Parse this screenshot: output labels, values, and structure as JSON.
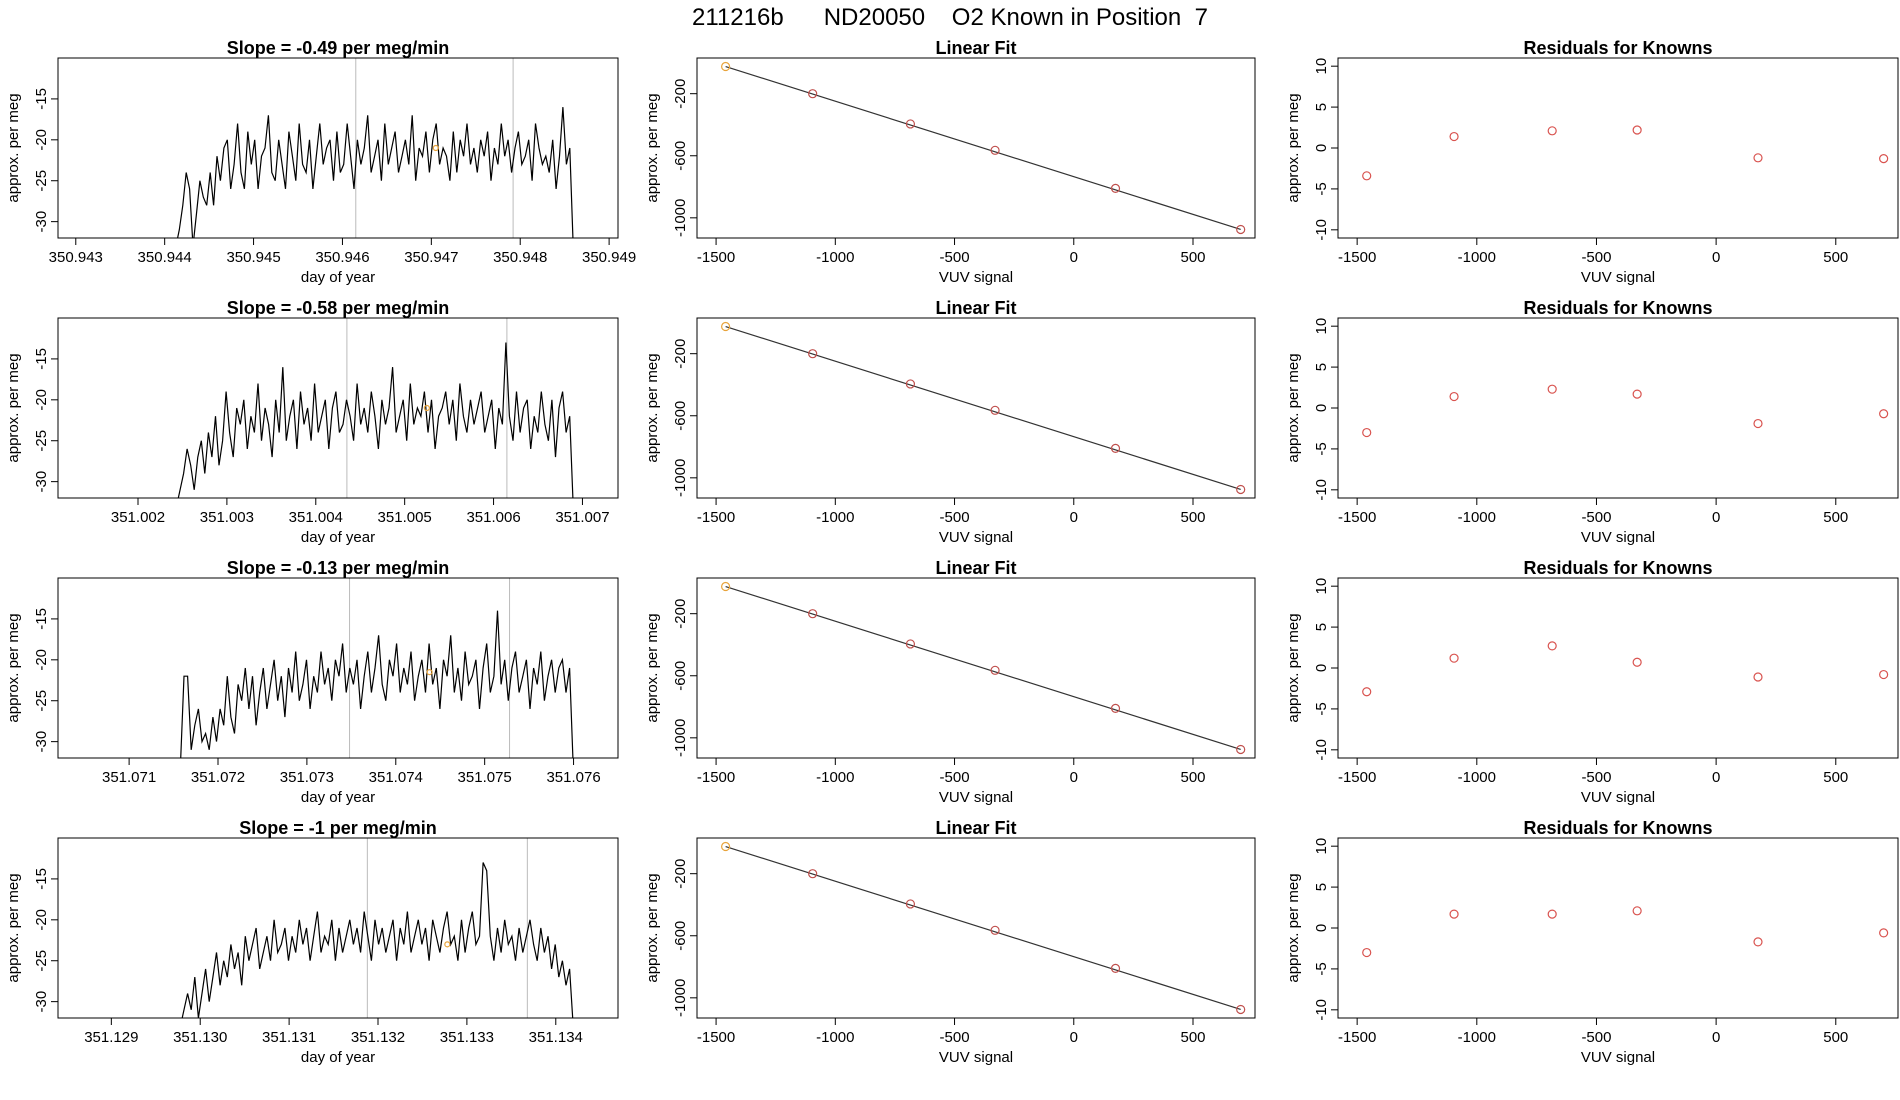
{
  "page_title": "211216b      ND20050    O2 Known in Position  7",
  "colors": {
    "trace": "#000000",
    "known_marker": "#e8a33a",
    "residual_marker": "#d9534f",
    "fit_point": "#c0504d",
    "vline": "#bbbbbb",
    "axis": "#000000"
  },
  "rows": [
    {
      "time_series": {
        "title": "Slope =  -0.49  per meg/min",
        "xlabel": "day of year",
        "ylabel": "approx. per meg",
        "xticks": [
          "350.943",
          "350.944",
          "350.945",
          "350.946",
          "350.947",
          "350.948",
          "350.949"
        ],
        "yticks": [
          "-15",
          "-20",
          "-25",
          "-30"
        ]
      },
      "fit": {
        "title": "Linear Fit",
        "xlabel": "VUV signal",
        "ylabel": "approx. per meg",
        "xticks": [
          "-1500",
          "-1000",
          "-500",
          "0",
          "500"
        ],
        "yticks": [
          "-200",
          "-600",
          "-1000"
        ]
      },
      "residuals": {
        "title": "Residuals for Knowns",
        "xlabel": "VUV signal",
        "ylabel": "approx. per meg",
        "xticks": [
          "-1500",
          "-1000",
          "-500",
          "0",
          "500"
        ],
        "yticks": [
          "10",
          "5",
          "0",
          "-5",
          "-10"
        ]
      }
    },
    {
      "time_series": {
        "title": "Slope =  -0.58  per meg/min",
        "xlabel": "day of year",
        "ylabel": "approx. per meg",
        "xticks": [
          "351.002",
          "351.003",
          "351.004",
          "351.005",
          "351.006",
          "351.007"
        ],
        "yticks": [
          "-15",
          "-20",
          "-25",
          "-30"
        ]
      },
      "fit": {
        "title": "Linear Fit",
        "xlabel": "VUV signal",
        "ylabel": "approx. per meg",
        "xticks": [
          "-1500",
          "-1000",
          "-500",
          "0",
          "500"
        ],
        "yticks": [
          "-200",
          "-600",
          "-1000"
        ]
      },
      "residuals": {
        "title": "Residuals for Knowns",
        "xlabel": "VUV signal",
        "ylabel": "approx. per meg",
        "xticks": [
          "-1500",
          "-1000",
          "-500",
          "0",
          "500"
        ],
        "yticks": [
          "10",
          "5",
          "0",
          "-5",
          "-10"
        ]
      }
    },
    {
      "time_series": {
        "title": "Slope =  -0.13  per meg/min",
        "xlabel": "day of year",
        "ylabel": "approx. per meg",
        "xticks": [
          "351.071",
          "351.072",
          "351.073",
          "351.074",
          "351.075",
          "351.076"
        ],
        "yticks": [
          "-15",
          "-20",
          "-25",
          "-30"
        ]
      },
      "fit": {
        "title": "Linear Fit",
        "xlabel": "VUV signal",
        "ylabel": "approx. per meg",
        "xticks": [
          "-1500",
          "-1000",
          "-500",
          "0",
          "500"
        ],
        "yticks": [
          "-200",
          "-600",
          "-1000"
        ]
      },
      "residuals": {
        "title": "Residuals for Knowns",
        "xlabel": "VUV signal",
        "ylabel": "approx. per meg",
        "xticks": [
          "-1500",
          "-1000",
          "-500",
          "0",
          "500"
        ],
        "yticks": [
          "10",
          "5",
          "0",
          "-5",
          "-10"
        ]
      }
    },
    {
      "time_series": {
        "title": "Slope =  -1  per meg/min",
        "xlabel": "day of year",
        "ylabel": "approx. per meg",
        "xticks": [
          "351.129",
          "351.130",
          "351.131",
          "351.132",
          "351.133",
          "351.134"
        ],
        "yticks": [
          "-15",
          "-20",
          "-25",
          "-30"
        ]
      },
      "fit": {
        "title": "Linear Fit",
        "xlabel": "VUV signal",
        "ylabel": "approx. per meg",
        "xticks": [
          "-1500",
          "-1000",
          "-500",
          "0",
          "500"
        ],
        "yticks": [
          "-200",
          "-600",
          "-1000"
        ]
      },
      "residuals": {
        "title": "Residuals for Knowns",
        "xlabel": "VUV signal",
        "ylabel": "approx. per meg",
        "xticks": [
          "-1500",
          "-1000",
          "-500",
          "0",
          "500"
        ],
        "yticks": [
          "10",
          "5",
          "0",
          "-5",
          "-10"
        ]
      }
    }
  ],
  "chart_data": [
    {
      "type": "line",
      "title": "Slope =  -0.49  per meg/min",
      "xlabel": "day of year",
      "ylabel": "approx. per meg",
      "xlim": [
        350.9428,
        350.9491
      ],
      "ylim": [
        -32,
        -10
      ],
      "vlines": [
        350.94615,
        350.94792
      ],
      "known_point": {
        "x": 350.94705,
        "y": -21
      },
      "series": [
        {
          "values": [
            -33,
            -33,
            -33,
            -33,
            -33,
            -33,
            -31,
            -28,
            -24,
            -26,
            -33,
            -29,
            -25,
            -27,
            -28,
            -24,
            -28,
            -22,
            -25,
            -21,
            -20,
            -26,
            -23,
            -18,
            -24,
            -26,
            -19,
            -23,
            -20,
            -26,
            -22,
            -21,
            -17,
            -24,
            -25,
            -20,
            -23,
            -26,
            -19,
            -22,
            -25,
            -18,
            -23,
            -24,
            -20,
            -26,
            -22,
            -18,
            -23,
            -21,
            -20,
            -25,
            -19,
            -24,
            -23,
            -18,
            -22,
            -26,
            -20,
            -23,
            -21,
            -17,
            -24,
            -22,
            -20,
            -25,
            -18,
            -23,
            -21,
            -19,
            -24,
            -22,
            -20,
            -23,
            -17,
            -25,
            -21,
            -22,
            -19,
            -24,
            -20,
            -18,
            -23,
            -21,
            -22,
            -25,
            -19,
            -24,
            -20,
            -22,
            -18,
            -23,
            -21,
            -24,
            -20,
            -22,
            -19,
            -25,
            -21,
            -23,
            -18,
            -22,
            -20,
            -24,
            -21,
            -19,
            -23,
            -22,
            -20,
            -25,
            -18,
            -21,
            -23,
            -22,
            -24,
            -20,
            -26,
            -22,
            -16,
            -23,
            -21,
            -33
          ]
        }
      ]
    },
    {
      "type": "line",
      "title": "Slope =  -0.58  per meg/min",
      "xlabel": "day of year",
      "ylabel": "approx. per meg",
      "xlim": [
        351.0011,
        351.0074
      ],
      "ylim": [
        -32,
        -10
      ],
      "vlines": [
        351.00435,
        351.00615
      ],
      "known_point": {
        "x": 351.00525,
        "y": -21
      },
      "series": [
        {
          "values": [
            -33,
            -33,
            -33,
            -33,
            -33,
            -33,
            -31,
            -29,
            -26,
            -28,
            -31,
            -27,
            -25,
            -29,
            -24,
            -27,
            -22,
            -28,
            -25,
            -19,
            -24,
            -27,
            -21,
            -23,
            -20,
            -26,
            -22,
            -24,
            -18,
            -25,
            -21,
            -23,
            -27,
            -20,
            -24,
            -16,
            -25,
            -22,
            -20,
            -26,
            -19,
            -23,
            -21,
            -25,
            -18,
            -24,
            -22,
            -20,
            -26,
            -21,
            -19,
            -24,
            -23,
            -20,
            -22,
            -25,
            -18,
            -23,
            -21,
            -24,
            -19,
            -22,
            -26,
            -20,
            -23,
            -21,
            -16,
            -24,
            -22,
            -20,
            -25,
            -18,
            -23,
            -21,
            -22,
            -19,
            -24,
            -20,
            -26,
            -22,
            -21,
            -19,
            -23,
            -20,
            -25,
            -18,
            -22,
            -24,
            -20,
            -23,
            -21,
            -19,
            -24,
            -22,
            -20,
            -26,
            -21,
            -23,
            -13,
            -22,
            -25,
            -19,
            -24,
            -21,
            -20,
            -26,
            -22,
            -24,
            -19,
            -23,
            -25,
            -20,
            -27,
            -21,
            -19,
            -24,
            -22,
            -33
          ]
        }
      ]
    },
    {
      "type": "line",
      "title": "Slope =  -0.13  per meg/min",
      "xlabel": "day of year",
      "ylabel": "approx. per meg",
      "xlim": [
        351.0702,
        351.0765
      ],
      "ylim": [
        -32,
        -10
      ],
      "vlines": [
        351.07348,
        351.07528
      ],
      "known_point": {
        "x": 351.07438,
        "y": -21.5
      },
      "series": [
        {
          "values": [
            -33,
            -33,
            -33,
            -33,
            -33,
            -33,
            -33,
            -22,
            -22,
            -31,
            -28,
            -26,
            -30,
            -29,
            -31,
            -27,
            -30,
            -26,
            -28,
            -22,
            -27,
            -29,
            -23,
            -25,
            -21,
            -26,
            -22,
            -28,
            -24,
            -21,
            -26,
            -23,
            -20,
            -25,
            -22,
            -27,
            -21,
            -24,
            -19,
            -25,
            -23,
            -20,
            -26,
            -22,
            -24,
            -19,
            -23,
            -21,
            -25,
            -20,
            -22,
            -18,
            -24,
            -21,
            -23,
            -20,
            -26,
            -22,
            -19,
            -24,
            -21,
            -17,
            -23,
            -25,
            -20,
            -22,
            -18,
            -24,
            -21,
            -23,
            -19,
            -25,
            -22,
            -20,
            -24,
            -18,
            -23,
            -21,
            -26,
            -20,
            -22,
            -17,
            -24,
            -21,
            -25,
            -19,
            -23,
            -22,
            -20,
            -26,
            -21,
            -18,
            -24,
            -22,
            -14,
            -23,
            -20,
            -25,
            -21,
            -19,
            -24,
            -22,
            -20,
            -26,
            -21,
            -23,
            -19,
            -25,
            -22,
            -20,
            -24,
            -21,
            -20,
            -24,
            -21,
            -33
          ]
        }
      ]
    },
    {
      "type": "line",
      "title": "Slope =  -1  per meg/min",
      "xlabel": "day of year",
      "ylabel": "approx. per meg",
      "xlim": [
        351.1284,
        351.1347
      ],
      "ylim": [
        -32,
        -10
      ],
      "vlines": [
        351.13188,
        351.13368
      ],
      "known_point": {
        "x": 351.13278,
        "y": -23
      },
      "series": [
        {
          "values": [
            -33,
            -33,
            -33,
            -33,
            -33,
            -33,
            -33,
            -31,
            -29,
            -31,
            -27,
            -32,
            -29,
            -26,
            -30,
            -27,
            -24,
            -28,
            -25,
            -27,
            -23,
            -26,
            -24,
            -28,
            -22,
            -25,
            -23,
            -21,
            -26,
            -24,
            -22,
            -25,
            -20,
            -24,
            -23,
            -21,
            -25,
            -22,
            -24,
            -20,
            -23,
            -21,
            -25,
            -22,
            -19,
            -24,
            -22,
            -23,
            -20,
            -25,
            -21,
            -24,
            -22,
            -20,
            -23,
            -21,
            -24,
            -19,
            -22,
            -25,
            -20,
            -23,
            -21,
            -24,
            -22,
            -20,
            -25,
            -21,
            -23,
            -19,
            -24,
            -22,
            -20,
            -23,
            -21,
            -25,
            -20,
            -22,
            -24,
            -21,
            -19,
            -23,
            -22,
            -25,
            -20,
            -24,
            -21,
            -19,
            -23,
            -22,
            -13,
            -14,
            -22,
            -25,
            -21,
            -24,
            -20,
            -23,
            -22,
            -25,
            -21,
            -24,
            -22,
            -20,
            -23,
            -25,
            -21,
            -24,
            -22,
            -26,
            -23,
            -27,
            -25,
            -28,
            -26,
            -33
          ]
        }
      ]
    },
    {
      "type": "scatter",
      "title": "Linear Fit",
      "xlabel": "VUV signal",
      "ylabel": "approx. per meg",
      "xlim": [
        -1580,
        760
      ],
      "ylim": [
        -1130,
        30
      ],
      "x": [
        -1460,
        -1095,
        -685,
        -330,
        175,
        700
      ],
      "y": [
        -25,
        -200,
        -395,
        -565,
        -810,
        -1075
      ],
      "fit_line": {
        "x": [
          -1460,
          700
        ],
        "y": [
          -25,
          -1075
        ]
      }
    },
    {
      "type": "scatter",
      "title": "Linear Fit",
      "xlabel": "VUV signal",
      "ylabel": "approx. per meg",
      "xlim": [
        -1580,
        760
      ],
      "ylim": [
        -1130,
        30
      ],
      "x": [
        -1460,
        -1095,
        -685,
        -330,
        175,
        700
      ],
      "y": [
        -25,
        -200,
        -395,
        -565,
        -810,
        -1075
      ],
      "fit_line": {
        "x": [
          -1460,
          700
        ],
        "y": [
          -25,
          -1075
        ]
      }
    },
    {
      "type": "scatter",
      "title": "Linear Fit",
      "xlabel": "VUV signal",
      "ylabel": "approx. per meg",
      "xlim": [
        -1580,
        760
      ],
      "ylim": [
        -1130,
        30
      ],
      "x": [
        -1460,
        -1095,
        -685,
        -330,
        175,
        700
      ],
      "y": [
        -25,
        -200,
        -395,
        -565,
        -810,
        -1075
      ],
      "fit_line": {
        "x": [
          -1460,
          700
        ],
        "y": [
          -25,
          -1075
        ]
      }
    },
    {
      "type": "scatter",
      "title": "Linear Fit",
      "xlabel": "VUV signal",
      "ylabel": "approx. per meg",
      "xlim": [
        -1580,
        760
      ],
      "ylim": [
        -1130,
        30
      ],
      "x": [
        -1460,
        -1095,
        -685,
        -330,
        175,
        700
      ],
      "y": [
        -25,
        -200,
        -395,
        -565,
        -810,
        -1075
      ],
      "fit_line": {
        "x": [
          -1460,
          700
        ],
        "y": [
          -25,
          -1075
        ]
      }
    },
    {
      "type": "scatter",
      "title": "Residuals for Knowns",
      "xlabel": "VUV signal",
      "ylabel": "approx. per meg",
      "xlim": [
        -1580,
        760
      ],
      "ylim": [
        -11,
        11
      ],
      "x": [
        -1460,
        -1095,
        -685,
        -330,
        175,
        700
      ],
      "y": [
        -3.4,
        1.4,
        2.1,
        2.2,
        -1.2,
        -1.3
      ]
    },
    {
      "type": "scatter",
      "title": "Residuals for Knowns",
      "xlabel": "VUV signal",
      "ylabel": "approx. per meg",
      "xlim": [
        -1580,
        760
      ],
      "ylim": [
        -11,
        11
      ],
      "x": [
        -1460,
        -1095,
        -685,
        -330,
        175,
        700
      ],
      "y": [
        -3.0,
        1.4,
        2.3,
        1.7,
        -1.9,
        -0.7
      ]
    },
    {
      "type": "scatter",
      "title": "Residuals for Knowns",
      "xlabel": "VUV signal",
      "ylabel": "approx. per meg",
      "xlim": [
        -1580,
        760
      ],
      "ylim": [
        -11,
        11
      ],
      "x": [
        -1460,
        -1095,
        -685,
        -330,
        175,
        700
      ],
      "y": [
        -2.9,
        1.2,
        2.7,
        0.7,
        -1.1,
        -0.8
      ]
    },
    {
      "type": "scatter",
      "title": "Residuals for Knowns",
      "xlabel": "VUV signal",
      "ylabel": "approx. per meg",
      "xlim": [
        -1580,
        760
      ],
      "ylim": [
        -11,
        11
      ],
      "x": [
        -1460,
        -1095,
        -685,
        -330,
        175,
        700
      ],
      "y": [
        -3.0,
        1.7,
        1.7,
        2.1,
        -1.7,
        -0.6
      ]
    }
  ]
}
